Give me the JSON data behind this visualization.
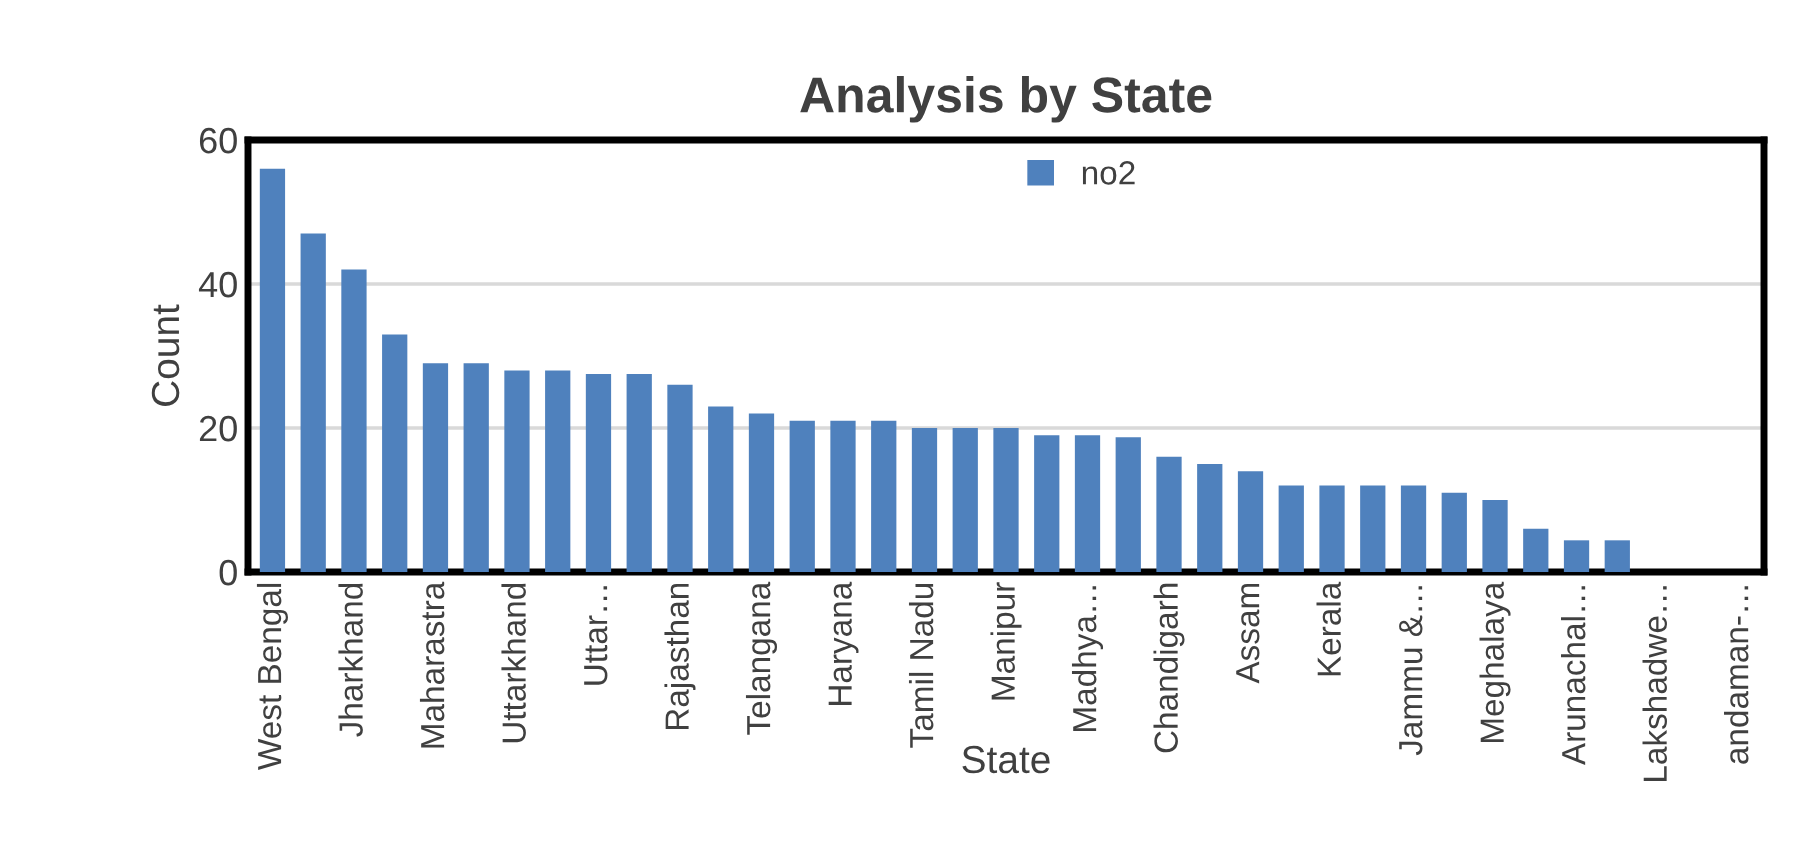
{
  "chart_data": {
    "type": "bar",
    "title": "Analysis by State",
    "xlabel": "State",
    "ylabel": "Count",
    "categories": [
      "West Bengal",
      null,
      "Jharkhand",
      null,
      "Maharastra",
      null,
      "Uttarkhand",
      null,
      "Uttar…",
      null,
      "Rajasthan",
      null,
      "Telangana",
      null,
      "Haryana",
      null,
      "Tamil Nadu",
      null,
      "Manipur",
      null,
      "Madhya…",
      null,
      "Chandigarh",
      null,
      "Assam",
      null,
      "Kerala",
      null,
      "Jammu &…",
      null,
      "Meghalaya",
      null,
      "Arunachal…",
      null,
      "Lakshadwe…",
      null,
      "andaman-…"
    ],
    "series": [
      {
        "name": "no2",
        "color": "#4f81bd",
        "values": [
          56,
          47,
          42,
          33,
          29,
          29,
          28,
          28,
          27.5,
          27.5,
          26,
          23,
          22,
          21,
          21,
          21,
          20,
          20,
          20,
          19,
          19,
          18.7,
          16,
          15,
          14,
          12,
          12,
          12,
          12,
          11,
          10,
          6,
          4.4,
          4.4,
          0,
          0,
          0
        ]
      }
    ],
    "ylim": [
      0,
      60
    ],
    "yticks": [
      0,
      20,
      40,
      60
    ],
    "grid": "y",
    "legend": "top"
  }
}
